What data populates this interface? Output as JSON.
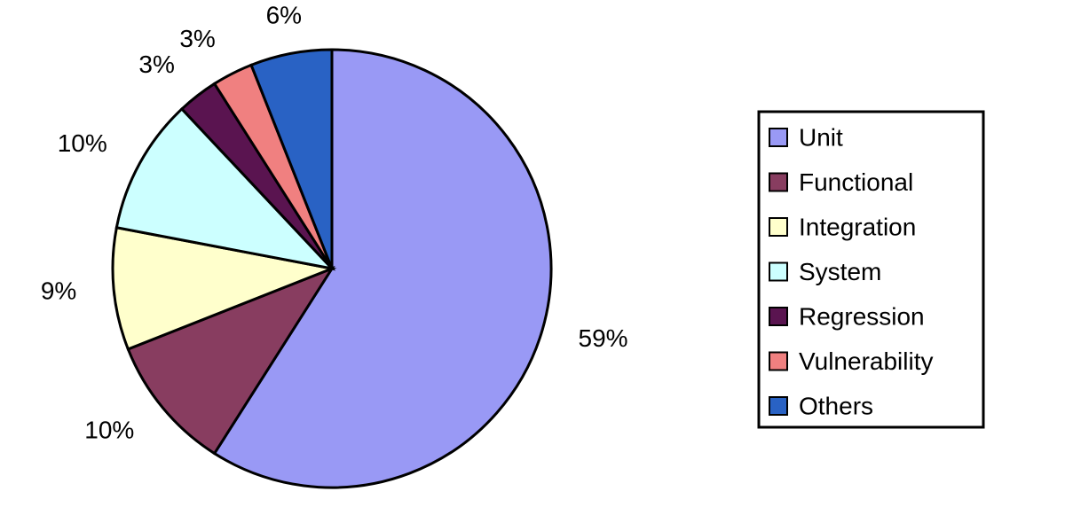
{
  "chart_data": {
    "type": "pie",
    "categories": [
      "Unit",
      "Functional",
      "Integration",
      "System",
      "Regression",
      "Vulnerability",
      "Others"
    ],
    "values": [
      59,
      10,
      9,
      10,
      3,
      3,
      6
    ],
    "value_labels": [
      "59%",
      "10%",
      "9%",
      "10%",
      "3%",
      "3%",
      "6%"
    ],
    "colors": [
      "#9999f5",
      "#883d60",
      "#ffffcc",
      "#ccffff",
      "#5a1450",
      "#f08080",
      "#2962c4"
    ],
    "legend": "right"
  }
}
